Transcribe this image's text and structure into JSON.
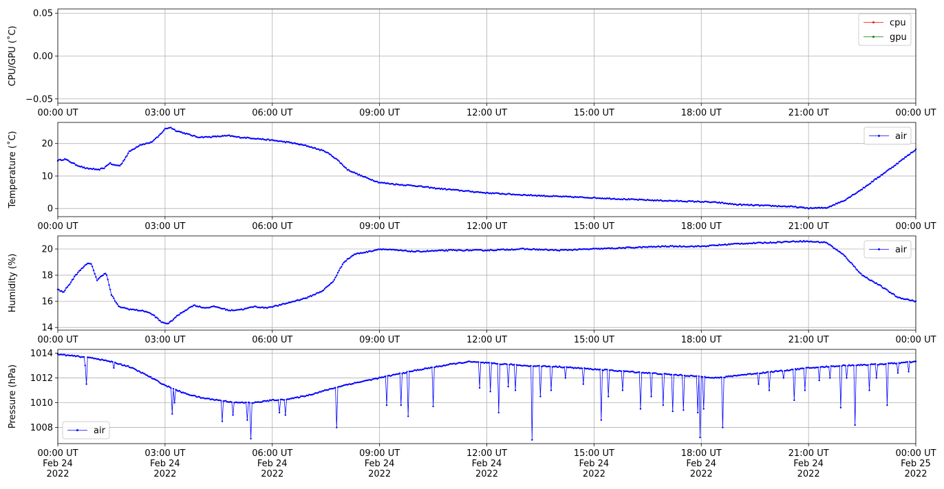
{
  "chart_data": [
    {
      "type": "line",
      "ylabel": "CPU/GPU (˚C)",
      "ylim": [
        -0.055,
        0.055
      ],
      "yticks": [
        -0.05,
        0.0,
        0.05
      ],
      "ytick_labels": [
        "−0.05",
        "0.00",
        "0.05"
      ],
      "xticks": [
        "00:00 UT",
        "03:00 UT",
        "06:00 UT",
        "09:00 UT",
        "12:00 UT",
        "15:00 UT",
        "18:00 UT",
        "21:00 UT",
        "00:00 UT"
      ],
      "grid": true,
      "legend_position": "upper-right",
      "series": [
        {
          "name": "cpu",
          "color": "#ff0000",
          "points": []
        },
        {
          "name": "gpu",
          "color": "#008000",
          "points": []
        }
      ]
    },
    {
      "type": "line",
      "ylabel": "Temperature (˚C)",
      "ylim": [
        -2.5,
        26.5
      ],
      "yticks": [
        0,
        10,
        20
      ],
      "ytick_labels": [
        "0",
        "10",
        "20"
      ],
      "xticks": [
        "00:00 UT",
        "03:00 UT",
        "06:00 UT",
        "09:00 UT",
        "12:00 UT",
        "15:00 UT",
        "18:00 UT",
        "21:00 UT",
        "00:00 UT"
      ],
      "grid": true,
      "legend_position": "upper-right",
      "series": [
        {
          "name": "air",
          "color": "#0000ff",
          "points": [
            [
              0.0,
              14.8
            ],
            [
              0.2,
              15.2
            ],
            [
              0.5,
              13.5
            ],
            [
              0.8,
              12.3
            ],
            [
              1.0,
              12.2
            ],
            [
              1.1,
              11.8
            ],
            [
              1.3,
              12.5
            ],
            [
              1.45,
              14.0
            ],
            [
              1.55,
              13.4
            ],
            [
              1.75,
              13.2
            ],
            [
              2.0,
              17.5
            ],
            [
              2.3,
              19.6
            ],
            [
              2.6,
              20.3
            ],
            [
              2.8,
              22.0
            ],
            [
              3.0,
              24.5
            ],
            [
              3.15,
              25.0
            ],
            [
              3.3,
              24.0
            ],
            [
              3.6,
              23.0
            ],
            [
              3.9,
              22.0
            ],
            [
              4.2,
              22.0
            ],
            [
              4.5,
              22.2
            ],
            [
              4.8,
              22.4
            ],
            [
              5.0,
              22.0
            ],
            [
              5.5,
              21.6
            ],
            [
              6.0,
              21.0
            ],
            [
              6.5,
              20.3
            ],
            [
              7.0,
              19.2
            ],
            [
              7.5,
              17.5
            ],
            [
              7.8,
              15.2
            ],
            [
              8.1,
              12.0
            ],
            [
              8.5,
              10.0
            ],
            [
              9.0,
              8.0
            ],
            [
              9.5,
              7.4
            ],
            [
              10.0,
              7.0
            ],
            [
              10.5,
              6.3
            ],
            [
              11.0,
              5.8
            ],
            [
              12.0,
              4.8
            ],
            [
              13.0,
              4.2
            ],
            [
              14.0,
              3.7
            ],
            [
              15.0,
              3.3
            ],
            [
              16.0,
              2.8
            ],
            [
              17.0,
              2.4
            ],
            [
              18.0,
              2.1
            ],
            [
              18.5,
              1.8
            ],
            [
              19.0,
              1.2
            ],
            [
              20.0,
              0.8
            ],
            [
              20.5,
              0.6
            ],
            [
              21.0,
              0.1
            ],
            [
              21.5,
              0.2
            ],
            [
              22.0,
              2.5
            ],
            [
              22.5,
              6.0
            ],
            [
              23.0,
              10.0
            ],
            [
              23.5,
              14.0
            ],
            [
              24.0,
              18.2
            ]
          ]
        }
      ]
    },
    {
      "type": "line",
      "ylabel": "Humidity (%)",
      "ylim": [
        13.8,
        21.0
      ],
      "yticks": [
        14,
        16,
        18,
        20
      ],
      "ytick_labels": [
        "14",
        "16",
        "18",
        "20"
      ],
      "xticks": [
        "00:00 UT",
        "03:00 UT",
        "06:00 UT",
        "09:00 UT",
        "12:00 UT",
        "15:00 UT",
        "18:00 UT",
        "21:00 UT",
        "00:00 UT"
      ],
      "grid": true,
      "legend_position": "upper-right",
      "series": [
        {
          "name": "air",
          "color": "#0000ff",
          "points": [
            [
              0.0,
              16.9
            ],
            [
              0.15,
              16.7
            ],
            [
              0.3,
              17.2
            ],
            [
              0.5,
              18.0
            ],
            [
              0.7,
              18.6
            ],
            [
              0.85,
              18.9
            ],
            [
              0.95,
              18.8
            ],
            [
              1.1,
              17.6
            ],
            [
              1.25,
              18.0
            ],
            [
              1.35,
              18.2
            ],
            [
              1.5,
              16.5
            ],
            [
              1.7,
              15.6
            ],
            [
              2.0,
              15.4
            ],
            [
              2.3,
              15.3
            ],
            [
              2.5,
              15.2
            ],
            [
              2.7,
              14.9
            ],
            [
              2.9,
              14.4
            ],
            [
              3.1,
              14.3
            ],
            [
              3.3,
              14.8
            ],
            [
              3.5,
              15.2
            ],
            [
              3.8,
              15.7
            ],
            [
              4.1,
              15.5
            ],
            [
              4.4,
              15.6
            ],
            [
              4.8,
              15.3
            ],
            [
              5.2,
              15.4
            ],
            [
              5.5,
              15.6
            ],
            [
              5.8,
              15.5
            ],
            [
              6.2,
              15.7
            ],
            [
              6.6,
              16.0
            ],
            [
              7.0,
              16.3
            ],
            [
              7.4,
              16.8
            ],
            [
              7.7,
              17.5
            ],
            [
              8.0,
              19.0
            ],
            [
              8.3,
              19.6
            ],
            [
              8.7,
              19.8
            ],
            [
              9.0,
              20.0
            ],
            [
              10.0,
              19.8
            ],
            [
              11.0,
              19.9
            ],
            [
              12.0,
              19.9
            ],
            [
              13.0,
              20.0
            ],
            [
              14.0,
              19.9
            ],
            [
              15.0,
              20.0
            ],
            [
              16.0,
              20.1
            ],
            [
              17.0,
              20.2
            ],
            [
              18.0,
              20.2
            ],
            [
              19.0,
              20.4
            ],
            [
              20.0,
              20.5
            ],
            [
              20.8,
              20.6
            ],
            [
              21.5,
              20.5
            ],
            [
              22.0,
              19.5
            ],
            [
              22.5,
              18.0
            ],
            [
              23.0,
              17.2
            ],
            [
              23.5,
              16.3
            ],
            [
              24.0,
              16.0
            ]
          ]
        }
      ]
    },
    {
      "type": "line",
      "ylabel": "Pressure (hPa)",
      "ylim": [
        1006.7,
        1014.3
      ],
      "yticks": [
        1008,
        1010,
        1012,
        1014
      ],
      "ytick_labels": [
        "1008",
        "1010",
        "1012",
        "1014"
      ],
      "xticks": [
        "00:00 UT\nFeb 24\n2022",
        "03:00 UT\nFeb 24\n2022",
        "06:00 UT\nFeb 24\n2022",
        "09:00 UT\nFeb 24\n2022",
        "12:00 UT\nFeb 24\n2022",
        "15:00 UT\nFeb 24\n2022",
        "18:00 UT\nFeb 24\n2022",
        "21:00 UT\nFeb 24\n2022",
        "00:00 UT\nFeb 25\n2022"
      ],
      "grid": true,
      "legend_position": "lower-left",
      "series": [
        {
          "name": "air",
          "color": "#0000ff",
          "points": [
            [
              0.0,
              1013.9
            ],
            [
              1.0,
              1013.6
            ],
            [
              1.5,
              1013.3
            ],
            [
              2.0,
              1012.9
            ],
            [
              2.5,
              1012.2
            ],
            [
              3.0,
              1011.4
            ],
            [
              3.5,
              1010.8
            ],
            [
              4.0,
              1010.4
            ],
            [
              4.5,
              1010.2
            ],
            [
              5.0,
              1010.0
            ],
            [
              5.5,
              1010.0
            ],
            [
              6.0,
              1010.2
            ],
            [
              6.5,
              1010.3
            ],
            [
              7.0,
              1010.6
            ],
            [
              7.5,
              1011.0
            ],
            [
              8.0,
              1011.4
            ],
            [
              9.0,
              1012.0
            ],
            [
              10.0,
              1012.6
            ],
            [
              11.0,
              1013.1
            ],
            [
              11.5,
              1013.3
            ],
            [
              12.0,
              1013.2
            ],
            [
              13.0,
              1013.0
            ],
            [
              14.0,
              1012.9
            ],
            [
              15.0,
              1012.7
            ],
            [
              16.0,
              1012.5
            ],
            [
              17.0,
              1012.3
            ],
            [
              18.0,
              1012.1
            ],
            [
              18.5,
              1012.0
            ],
            [
              19.0,
              1012.2
            ],
            [
              20.0,
              1012.5
            ],
            [
              21.0,
              1012.8
            ],
            [
              22.0,
              1013.0
            ],
            [
              23.0,
              1013.1
            ],
            [
              24.0,
              1013.3
            ]
          ],
          "dips": [
            [
              0.75,
              1013.0
            ],
            [
              0.8,
              1011.5
            ],
            [
              1.55,
              1012.8
            ],
            [
              3.2,
              1009.1
            ],
            [
              3.25,
              1010.0
            ],
            [
              4.6,
              1008.5
            ],
            [
              4.9,
              1009.0
            ],
            [
              5.3,
              1008.6
            ],
            [
              5.4,
              1007.1
            ],
            [
              6.2,
              1009.2
            ],
            [
              6.35,
              1009.0
            ],
            [
              7.8,
              1008.0
            ],
            [
              9.2,
              1009.8
            ],
            [
              9.6,
              1009.8
            ],
            [
              9.8,
              1008.9
            ],
            [
              10.5,
              1009.7
            ],
            [
              11.8,
              1011.2
            ],
            [
              12.1,
              1010.9
            ],
            [
              12.35,
              1009.2
            ],
            [
              12.6,
              1011.3
            ],
            [
              12.8,
              1011.0
            ],
            [
              13.25,
              1007.0
            ],
            [
              13.5,
              1010.5
            ],
            [
              13.8,
              1011.0
            ],
            [
              14.2,
              1012.0
            ],
            [
              14.7,
              1011.5
            ],
            [
              15.2,
              1008.6
            ],
            [
              15.4,
              1010.5
            ],
            [
              15.8,
              1011.0
            ],
            [
              16.3,
              1009.5
            ],
            [
              16.6,
              1010.5
            ],
            [
              16.95,
              1009.8
            ],
            [
              17.2,
              1009.3
            ],
            [
              17.5,
              1009.4
            ],
            [
              17.9,
              1009.2
            ],
            [
              17.95,
              1007.2
            ],
            [
              18.05,
              1009.5
            ],
            [
              18.6,
              1008.0
            ],
            [
              19.6,
              1011.5
            ],
            [
              19.9,
              1011.0
            ],
            [
              20.3,
              1012.0
            ],
            [
              20.6,
              1010.2
            ],
            [
              20.9,
              1011.0
            ],
            [
              21.3,
              1011.8
            ],
            [
              21.6,
              1012.0
            ],
            [
              21.9,
              1009.6
            ],
            [
              22.05,
              1012.0
            ],
            [
              22.3,
              1008.2
            ],
            [
              22.7,
              1011.0
            ],
            [
              22.9,
              1012.0
            ],
            [
              23.2,
              1009.8
            ],
            [
              23.5,
              1012.4
            ],
            [
              23.8,
              1012.5
            ]
          ]
        }
      ]
    }
  ]
}
